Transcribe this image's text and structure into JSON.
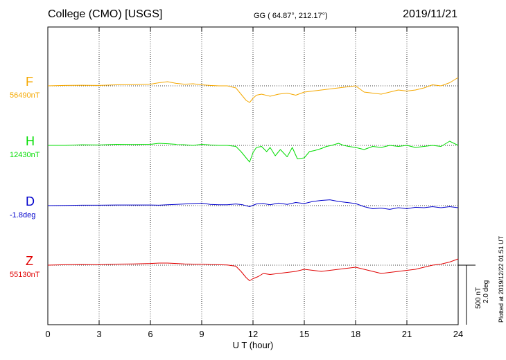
{
  "header": {
    "station": "College (CMO)  [USGS]",
    "coords": "GG ( 64.87°, 212.17°)",
    "date": "2019/11/21"
  },
  "scale": {
    "line1": "500 nT",
    "line2": "2.0 deg"
  },
  "plotted_note": "Plotted at 2019/12/22 01:51  UT",
  "colors": {
    "F": "#f5a800",
    "H": "#00dd00",
    "D": "#0000cc",
    "Z": "#e00000"
  },
  "chart_data": {
    "type": "line",
    "xlabel": "U T (hour)",
    "xlim": [
      0,
      24
    ],
    "xticks": [
      0,
      3,
      6,
      9,
      12,
      15,
      18,
      21,
      24
    ],
    "grid": true,
    "series": [
      {
        "name": "F",
        "baseline": "56490nT",
        "x": [
          0,
          1,
          2,
          3,
          4,
          5,
          6,
          6.5,
          7,
          7.5,
          8,
          8.5,
          9,
          9.5,
          10,
          10.5,
          11,
          11.3,
          11.6,
          11.8,
          12,
          12.2,
          12.5,
          13,
          13.5,
          14,
          14.5,
          15,
          15.5,
          16,
          16.5,
          17,
          17.5,
          18,
          18.5,
          19,
          19.5,
          20,
          20.5,
          21,
          21.5,
          22,
          22.5,
          23,
          23.5,
          24
        ],
        "y": [
          0,
          2,
          3,
          2,
          5,
          6,
          8,
          15,
          20,
          12,
          8,
          10,
          5,
          2,
          0,
          0,
          -10,
          -40,
          -70,
          -80,
          -60,
          -45,
          -40,
          -50,
          -40,
          -35,
          -45,
          -30,
          -25,
          -20,
          -15,
          -10,
          -5,
          0,
          -30,
          -35,
          -40,
          -30,
          -20,
          -25,
          -20,
          -10,
          5,
          0,
          15,
          40
        ]
      },
      {
        "name": "H",
        "baseline": "12430nT",
        "x": [
          0,
          1,
          2,
          3,
          4,
          5,
          6,
          6.5,
          7,
          7.5,
          8,
          8.5,
          9,
          9.5,
          10,
          10.5,
          11,
          11.3,
          11.6,
          11.8,
          12,
          12.2,
          12.5,
          12.8,
          13,
          13.3,
          13.6,
          14,
          14.3,
          14.6,
          15,
          15.3,
          15.6,
          16,
          16.3,
          16.6,
          17,
          17.3,
          17.6,
          18,
          18.5,
          19,
          19.5,
          20,
          20.5,
          21,
          21.5,
          22,
          22.5,
          23,
          23.5,
          24
        ],
        "y": [
          0,
          0,
          3,
          2,
          5,
          4,
          5,
          10,
          8,
          5,
          3,
          0,
          5,
          2,
          0,
          0,
          -5,
          -30,
          -60,
          -80,
          -35,
          -10,
          -5,
          -30,
          -10,
          -50,
          -20,
          -55,
          -10,
          -65,
          -60,
          -30,
          -25,
          -15,
          -5,
          0,
          10,
          0,
          -5,
          -10,
          -20,
          -5,
          -10,
          0,
          -5,
          0,
          -10,
          -5,
          0,
          -5,
          20,
          0
        ]
      },
      {
        "name": "D",
        "baseline": "-1.8deg",
        "x": [
          0,
          1,
          2,
          3,
          4,
          5,
          6,
          6.5,
          7,
          7.5,
          8,
          8.5,
          9,
          9.5,
          10,
          10.5,
          11,
          11.4,
          11.8,
          12.2,
          12.6,
          13,
          13.5,
          14,
          14.5,
          15,
          15.5,
          16,
          16.5,
          17,
          17.5,
          18,
          18.5,
          19,
          19.5,
          20,
          20.5,
          21,
          21.5,
          22,
          22.5,
          23,
          23.5,
          24
        ],
        "y": [
          0,
          1,
          2,
          2,
          3,
          3,
          3,
          2,
          4,
          6,
          8,
          10,
          12,
          6,
          4,
          4,
          8,
          4,
          -5,
          8,
          10,
          4,
          12,
          6,
          15,
          10,
          20,
          25,
          28,
          20,
          15,
          10,
          -5,
          -15,
          -12,
          -18,
          -10,
          -15,
          -8,
          -10,
          -5,
          -10,
          -5,
          -10
        ]
      },
      {
        "name": "Z",
        "baseline": "55130nT",
        "x": [
          0,
          1,
          2,
          3,
          4,
          5,
          6,
          6.5,
          7,
          7.5,
          8,
          8.5,
          9,
          9.5,
          10,
          10.5,
          11,
          11.3,
          11.6,
          11.8,
          12,
          12.3,
          12.6,
          13,
          13.5,
          14,
          14.5,
          15,
          15.5,
          16,
          16.5,
          17,
          17.5,
          18,
          18.5,
          19,
          19.5,
          20,
          20.5,
          21,
          21.5,
          22,
          22.5,
          23,
          23.5,
          24
        ],
        "y": [
          0,
          2,
          3,
          2,
          5,
          6,
          8,
          10,
          10,
          8,
          6,
          5,
          5,
          3,
          2,
          1,
          -5,
          -30,
          -60,
          -75,
          -65,
          -55,
          -40,
          -45,
          -40,
          -35,
          -30,
          -20,
          -25,
          -30,
          -25,
          -20,
          -15,
          -10,
          -20,
          -30,
          -40,
          -35,
          -30,
          -25,
          -20,
          -10,
          0,
          5,
          15,
          30
        ]
      }
    ]
  }
}
